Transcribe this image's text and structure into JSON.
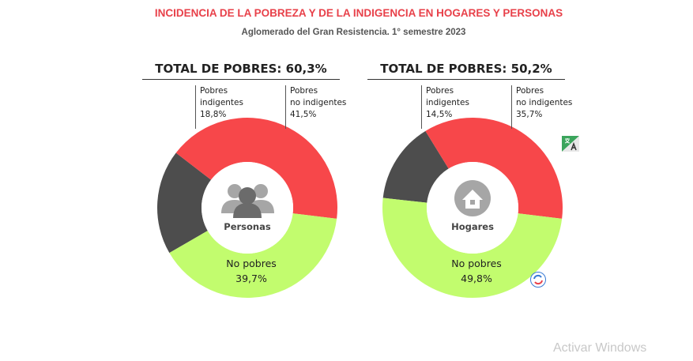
{
  "title": "INCIDENCIA DE LA POBREZA Y DE LA INDIGENCIA EN HOGARES Y PERSONAS",
  "subtitle": "Aglomerado del Gran Resistencia. 1° semestre 2023",
  "watermark": "Activar Windows",
  "colors": {
    "indigentes": "#4d4d4d",
    "no_indigentes": "#f7474a",
    "no_pobres": "#c2fc6e",
    "title": "#e8414a"
  },
  "icons": {
    "translate": "translate-icon",
    "refresh": "refresh-icon",
    "personas": "people-icon",
    "hogares": "house-icon"
  },
  "chart_data": [
    {
      "type": "pie",
      "variant": "donut",
      "title": "TOTAL DE POBRES: 60,3%",
      "center_label": "Personas",
      "slices": [
        {
          "name": "Pobres indigentes",
          "label_line1": "Pobres",
          "label_line2": "indigentes",
          "value": 18.8,
          "value_label": "18,8%"
        },
        {
          "name": "Pobres no indigentes",
          "label_line1": "Pobres",
          "label_line2": "no indigentes",
          "value": 41.5,
          "value_label": "41,5%"
        },
        {
          "name": "No pobres",
          "label_line1": "No pobres",
          "value": 39.7,
          "value_label": "39,7%"
        }
      ]
    },
    {
      "type": "pie",
      "variant": "donut",
      "title": "TOTAL DE POBRES: 50,2%",
      "center_label": "Hogares",
      "slices": [
        {
          "name": "Pobres indigentes",
          "label_line1": "Pobres",
          "label_line2": "indigentes",
          "value": 14.5,
          "value_label": "14,5%"
        },
        {
          "name": "Pobres no indigentes",
          "label_line1": "Pobres",
          "label_line2": "no indigentes",
          "value": 35.7,
          "value_label": "35,7%"
        },
        {
          "name": "No pobres",
          "label_line1": "No pobres",
          "value": 49.8,
          "value_label": "49,8%"
        }
      ]
    }
  ]
}
